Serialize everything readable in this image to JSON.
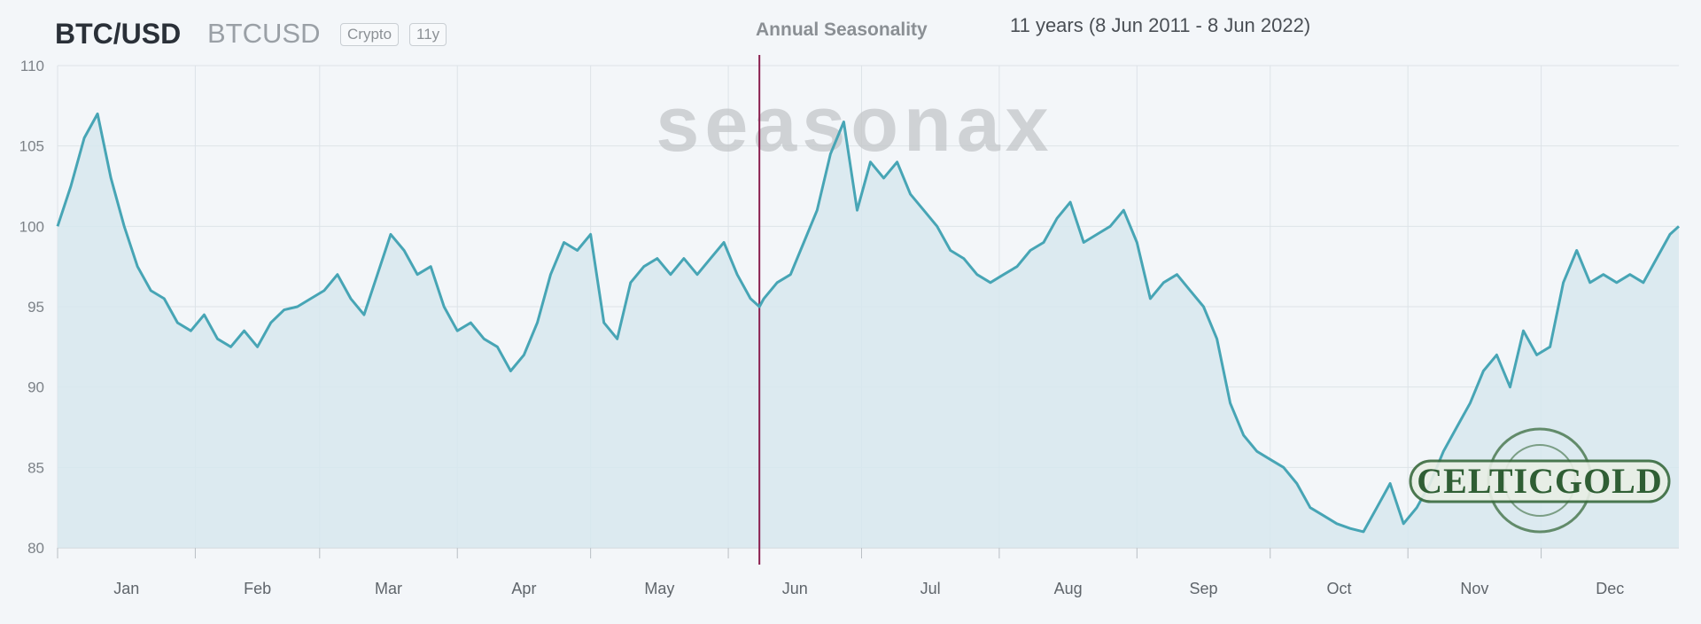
{
  "header": {
    "symbol": "BTC/USD",
    "ticker": "BTCUSD",
    "badges": [
      "Crypto",
      "11y"
    ],
    "chart_title": "Annual Seasonality",
    "period": "11 years (8 Jun 2011 - 8 Jun 2022)"
  },
  "watermark": "seasonax",
  "logo": "CELTICGOLD",
  "colors": {
    "line": "#47a5b5",
    "area": "#d7e8ee",
    "marker": "#8a1f4f",
    "background": "#f3f6f9"
  },
  "chart_data": {
    "type": "line",
    "title": "Annual Seasonality",
    "xlabel": "",
    "ylabel": "",
    "ylim": [
      80,
      110
    ],
    "yticks": [
      80,
      85,
      90,
      95,
      100,
      105,
      110
    ],
    "xticks": [
      "Jan",
      "Feb",
      "Mar",
      "Apr",
      "May",
      "Jun",
      "Jul",
      "Aug",
      "Sep",
      "Oct",
      "Nov",
      "Dec"
    ],
    "grid": true,
    "marker_date": "8 Jun",
    "series": [
      {
        "x": [
          1,
          4,
          7,
          10,
          13,
          16,
          19,
          22,
          25,
          28,
          31,
          34,
          37,
          40,
          43,
          46,
          49,
          52,
          55,
          58,
          61,
          64,
          67,
          70,
          73,
          76,
          79,
          82,
          85,
          88,
          91,
          94,
          97,
          100,
          103,
          106,
          109,
          112,
          115,
          118,
          121,
          124,
          127,
          130,
          133,
          136,
          139,
          142,
          145,
          148,
          151,
          154,
          157,
          159,
          160,
          163,
          166,
          169,
          172,
          175,
          178,
          181,
          184,
          187,
          190,
          193,
          196,
          199,
          202,
          205,
          208,
          211,
          214,
          217,
          220,
          223,
          226,
          229,
          232,
          235,
          238,
          241,
          244,
          247,
          250,
          253,
          256,
          259,
          262,
          265,
          268,
          271,
          274,
          277,
          280,
          283,
          286,
          289,
          292,
          295,
          298,
          301,
          304,
          307,
          310,
          313,
          316,
          319,
          322,
          325,
          328,
          331,
          334,
          337,
          340,
          343,
          346,
          349,
          352,
          355,
          358,
          361,
          364,
          366
        ],
        "values": [
          100,
          102.5,
          105.5,
          107,
          103,
          100,
          97.5,
          96,
          95.5,
          94,
          93.5,
          94.5,
          93,
          92.5,
          93.5,
          92.5,
          94,
          94.8,
          95,
          95.5,
          96,
          97,
          95.5,
          94.5,
          97,
          99.5,
          98.5,
          97,
          97.5,
          95,
          93.5,
          94,
          93,
          92.5,
          91,
          92,
          94,
          97,
          99,
          98.5,
          99.5,
          94,
          93,
          96.5,
          97.5,
          98,
          97,
          98,
          97,
          98,
          99,
          97,
          95.5,
          95,
          95.5,
          96.5,
          97,
          99,
          101,
          104.5,
          106.5,
          101,
          104,
          103,
          104,
          102,
          101,
          100,
          98.5,
          98,
          97,
          96.5,
          97,
          97.5,
          98.5,
          99,
          100.5,
          101.5,
          99,
          99.5,
          100,
          101,
          99,
          95.5,
          96.5,
          97,
          96,
          95,
          93,
          89,
          87,
          86,
          85.5,
          85,
          84,
          82.5,
          82,
          81.5,
          81.2,
          81,
          82.5,
          84,
          81.5,
          82.5,
          84,
          86,
          87.5,
          89,
          91,
          92,
          90,
          93.5,
          92,
          92.5,
          96.5,
          98.5,
          96.5,
          97,
          96.5,
          97,
          96.5,
          98,
          99.5,
          100
        ]
      }
    ]
  }
}
